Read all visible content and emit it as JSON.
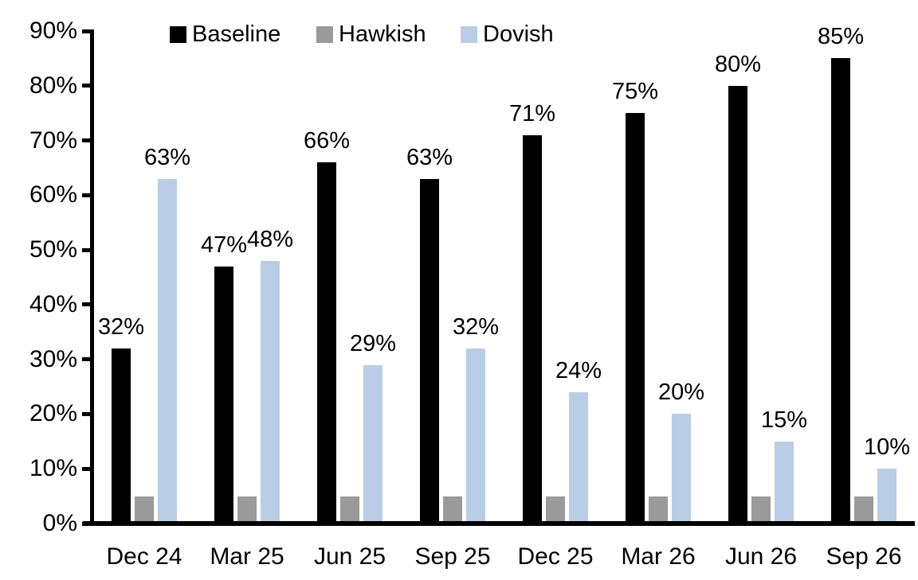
{
  "chart_data": {
    "type": "bar",
    "title": "",
    "xlabel": "",
    "ylabel": "",
    "categories": [
      "Dec 24",
      "Mar 25",
      "Jun 25",
      "Sep 25",
      "Dec 25",
      "Mar 26",
      "Jun 26",
      "Sep 26"
    ],
    "series": [
      {
        "name": "Baseline",
        "color": "#000000",
        "values": [
          32,
          47,
          66,
          63,
          71,
          75,
          80,
          85
        ],
        "labels": [
          "32%",
          "47%",
          "66%",
          "63%",
          "71%",
          "75%",
          "80%",
          "85%"
        ],
        "show_labels": true
      },
      {
        "name": "Hawkish",
        "color": "#9a9a9a",
        "values": [
          5,
          5,
          5,
          5,
          5,
          5,
          5,
          5
        ],
        "labels": [],
        "show_labels": false
      },
      {
        "name": "Dovish",
        "color": "#b9cde6",
        "values": [
          63,
          48,
          29,
          32,
          24,
          20,
          15,
          10
        ],
        "labels": [
          "63%",
          "48%",
          "29%",
          "32%",
          "24%",
          "20%",
          "15%",
          "10%"
        ],
        "show_labels": true
      }
    ],
    "ylim": [
      0,
      90
    ],
    "ytick_step": 10,
    "ytick_labels": [
      "0%",
      "10%",
      "20%",
      "30%",
      "40%",
      "50%",
      "60%",
      "70%",
      "80%",
      "90%"
    ],
    "grid": false,
    "legend_position": "top"
  }
}
